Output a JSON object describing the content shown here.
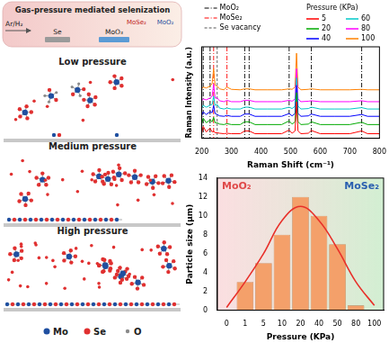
{
  "diagram": {
    "schematic": {
      "title": "Gas-pressure mediated selenization",
      "gas": "Ar/H₂",
      "products": [
        "MoSe₂",
        "MoO₂"
      ],
      "sources": [
        "Se",
        "MoO₃"
      ]
    },
    "panels": [
      "Low pressure",
      "Medium pressure",
      "High pressure"
    ],
    "legend": [
      {
        "label": "Mo",
        "color": "#1f4fa0"
      },
      {
        "label": "Se",
        "color": "#e03030"
      },
      {
        "label": "O",
        "color": "#8a8a8a"
      }
    ]
  },
  "chart_data": [
    {
      "type": "line",
      "x_label": "Raman Shift (cm⁻¹)",
      "y_label": "Raman Intensity (a.u.)",
      "legend_title": "Pressure (KPa)",
      "x": [
        200,
        205,
        215,
        228,
        235,
        240,
        245,
        252,
        260,
        275,
        285,
        300,
        330,
        345,
        360,
        380,
        420,
        470,
        495,
        505,
        515,
        520,
        525,
        535,
        560,
        570,
        600,
        650,
        700,
        740,
        760,
        800
      ],
      "xlim": [
        200,
        800
      ],
      "xticks": [
        200,
        300,
        400,
        500,
        600,
        700,
        800
      ],
      "ylim": [
        0,
        10
      ],
      "tick_labels": "x",
      "grid": false,
      "series": [
        {
          "name": "5",
          "color": "#ff0000",
          "values": [
            0.6,
            1.3,
            0.7,
            1.1,
            0.7,
            0.8,
            0.6,
            0.6,
            0.55,
            0.5,
            0.55,
            0.5,
            0.5,
            0.8,
            0.8,
            0.5,
            0.5,
            0.5,
            0.9,
            0.55,
            0.8,
            4.0,
            0.8,
            0.5,
            0.55,
            0.85,
            0.5,
            0.5,
            0.5,
            0.8,
            0.5,
            0.5
          ]
        },
        {
          "name": "20",
          "color": "#00aa00",
          "values": [
            1.6,
            2.2,
            1.7,
            2.0,
            1.8,
            2.3,
            1.7,
            1.7,
            1.55,
            1.5,
            1.6,
            1.5,
            1.5,
            1.8,
            1.8,
            1.5,
            1.5,
            1.5,
            1.9,
            1.55,
            1.8,
            5.0,
            1.8,
            1.5,
            1.55,
            1.8,
            1.5,
            1.5,
            1.5,
            1.75,
            1.5,
            1.5
          ]
        },
        {
          "name": "40",
          "color": "#0000ff",
          "values": [
            2.5,
            2.9,
            2.6,
            2.9,
            2.8,
            3.6,
            2.7,
            2.6,
            2.45,
            2.4,
            2.5,
            2.4,
            2.4,
            2.65,
            2.65,
            2.4,
            2.4,
            2.4,
            2.7,
            2.45,
            2.7,
            5.8,
            2.7,
            2.4,
            2.45,
            2.65,
            2.4,
            2.4,
            2.4,
            2.6,
            2.4,
            2.4
          ]
        },
        {
          "name": "60",
          "color": "#00c8c8",
          "values": [
            3.3,
            3.6,
            3.4,
            3.6,
            3.7,
            4.6,
            3.6,
            3.7,
            3.3,
            3.2,
            3.3,
            3.2,
            3.2,
            3.4,
            3.4,
            3.2,
            3.2,
            3.2,
            3.4,
            3.25,
            3.5,
            6.6,
            3.5,
            3.2,
            3.25,
            3.4,
            3.2,
            3.2,
            3.2,
            3.35,
            3.2,
            3.2
          ]
        },
        {
          "name": "80",
          "color": "#ff00ff",
          "values": [
            4.1,
            4.3,
            4.2,
            4.4,
            4.6,
            5.9,
            4.4,
            4.4,
            4.1,
            4.0,
            4.15,
            4.0,
            4.0,
            4.15,
            4.15,
            4.0,
            4.0,
            4.0,
            4.15,
            4.05,
            4.3,
            7.6,
            4.3,
            4.0,
            4.05,
            4.1,
            4.0,
            4.0,
            4.0,
            4.1,
            4.0,
            4.0
          ]
        },
        {
          "name": "100",
          "color": "#ff8000",
          "values": [
            5.4,
            5.6,
            5.5,
            5.7,
            6.0,
            7.6,
            5.8,
            5.7,
            5.4,
            5.3,
            5.6,
            5.35,
            5.3,
            5.4,
            5.4,
            5.3,
            5.3,
            5.3,
            5.4,
            5.35,
            5.6,
            9.3,
            5.6,
            5.3,
            5.35,
            5.4,
            5.3,
            5.3,
            5.3,
            5.35,
            5.3,
            5.3
          ]
        }
      ],
      "reference_lines": [
        {
          "name": "MoO₂",
          "color": "#000000",
          "line_style": "dashdot",
          "values": [
            205,
            228,
            345,
            360,
            495,
            570,
            740
          ]
        },
        {
          "name": "MoSe₂",
          "color": "#ff0000",
          "line_style": "dashdot",
          "values": [
            240,
            285
          ]
        },
        {
          "name": "Se vacancy",
          "color": "#555555",
          "line_style": "dashed",
          "values": [
            252
          ]
        }
      ]
    },
    {
      "type": "bar",
      "x_label": "Pressure (KPa)",
      "y_label": "Particle size (μm)",
      "categories": [
        "0",
        "1",
        "5",
        "10",
        "20",
        "40",
        "50",
        "80",
        "100"
      ],
      "ylim": [
        0,
        14
      ],
      "yticks": [
        0,
        2,
        4,
        6,
        8,
        10,
        12,
        14
      ],
      "grid": false,
      "series": [
        {
          "type": "bar",
          "color": "#f4a06a",
          "values": [
            null,
            3,
            5,
            8,
            12,
            10,
            7,
            0.5,
            null
          ]
        },
        {
          "type": "line",
          "color": "#e8302a",
          "values": [
            0.3,
            3,
            6,
            9.5,
            11,
            9.5,
            6.5,
            3,
            0.5
          ]
        }
      ],
      "annotations": [
        {
          "text": "MoO₂",
          "color": "#e04a4a"
        },
        {
          "text": "MoSe₂",
          "color": "#2a5fb0"
        }
      ]
    }
  ]
}
